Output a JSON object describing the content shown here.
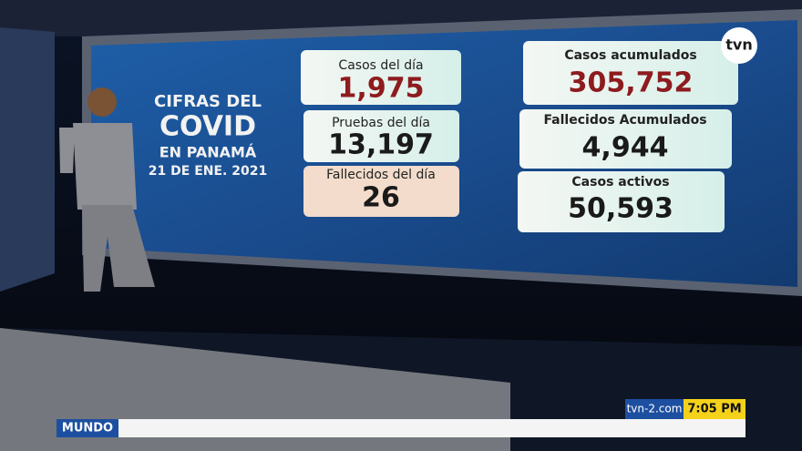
{
  "logo": "tvn",
  "headline": {
    "lines": [
      "CIFRAS DEL",
      "COVID",
      "EN PANAMÁ",
      "21 DE ENE. 2021"
    ]
  },
  "daily": [
    {
      "label": "Casos del día",
      "value": "1,975"
    },
    {
      "label": "Pruebas del día",
      "value": "13,197"
    },
    {
      "label": "Fallecidos del día",
      "value": "26"
    }
  ],
  "cumulative": [
    {
      "label": "Casos acumulados",
      "value": "305,752"
    },
    {
      "label": "Fallecidos Acumulados",
      "value": "4,944"
    },
    {
      "label": "Casos activos",
      "value": "50,593"
    }
  ],
  "ticker": {
    "section": "MUNDO",
    "site": "tvn-2.com",
    "time": "7:05 PM"
  }
}
